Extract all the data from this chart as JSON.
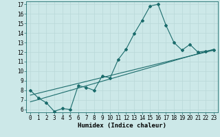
{
  "xlabel": "Humidex (Indice chaleur)",
  "ylabel": "",
  "bg_color": "#cce8e8",
  "grid_color": "#b8d8d8",
  "line_color": "#1a6b6b",
  "xlim": [
    -0.5,
    23.5
  ],
  "ylim": [
    5.7,
    17.3
  ],
  "xticks": [
    0,
    1,
    2,
    3,
    4,
    5,
    6,
    7,
    8,
    9,
    10,
    11,
    12,
    13,
    14,
    15,
    16,
    17,
    18,
    19,
    20,
    21,
    22,
    23
  ],
  "yticks": [
    6,
    7,
    8,
    9,
    10,
    11,
    12,
    13,
    14,
    15,
    16,
    17
  ],
  "curve1_x": [
    0,
    1,
    2,
    3,
    4,
    5,
    6,
    7,
    8,
    9,
    10,
    11,
    12,
    13,
    14,
    15,
    16,
    17,
    18,
    19,
    20,
    21,
    22,
    23
  ],
  "curve1_y": [
    8.0,
    7.2,
    6.7,
    5.8,
    6.1,
    6.0,
    8.5,
    8.3,
    8.0,
    9.5,
    9.3,
    11.2,
    12.3,
    13.9,
    15.3,
    16.8,
    17.0,
    14.8,
    13.0,
    12.2,
    12.8,
    12.0,
    12.1,
    12.2
  ],
  "line1_x": [
    0,
    23
  ],
  "line1_y": [
    6.8,
    12.3
  ],
  "line2_x": [
    0,
    23
  ],
  "line2_y": [
    7.5,
    12.2
  ],
  "font_size_tick": 5.5,
  "font_size_xlabel": 6.5,
  "marker_size": 2.0,
  "line_width": 0.8
}
